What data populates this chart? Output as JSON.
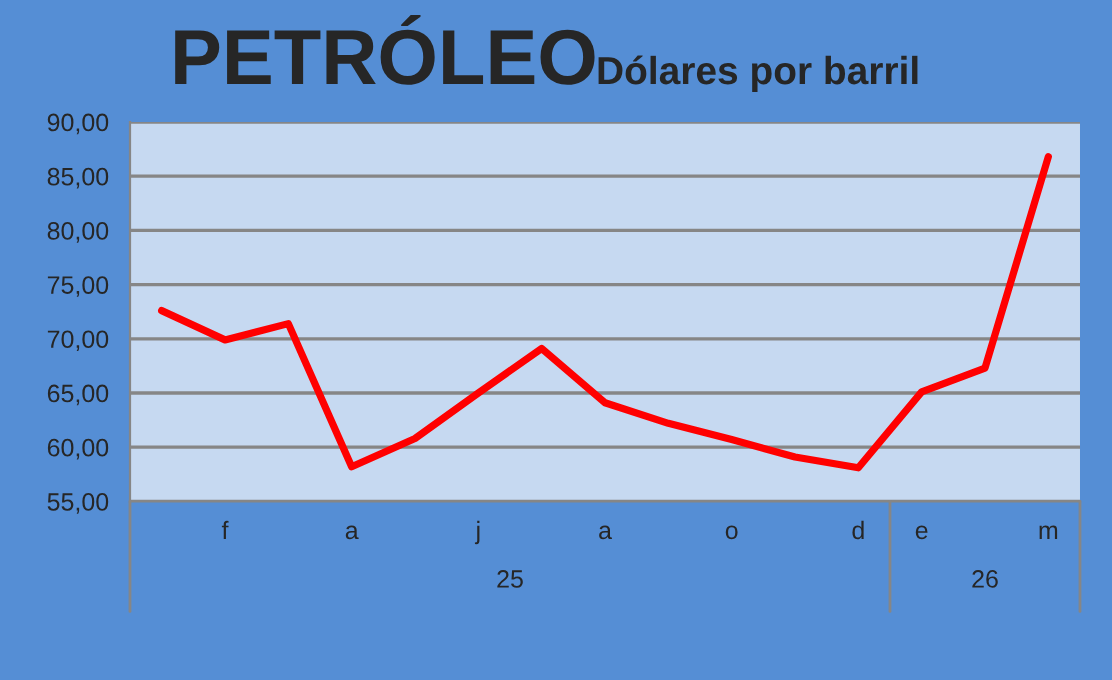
{
  "chart_data": {
    "type": "line",
    "title": "PETRÓLEO",
    "subtitle": "Dólares por barril",
    "categories": [
      null,
      "f",
      null,
      "a",
      null,
      "j",
      null,
      "a",
      null,
      "o",
      null,
      "d",
      "e",
      null,
      "m"
    ],
    "series": [
      {
        "color": "#ff0000",
        "values": [
          72.6,
          69.9,
          71.4,
          58.2,
          60.8,
          65.0,
          69.1,
          64.1,
          62.2,
          60.7,
          59.1,
          58.1,
          65.1,
          67.3,
          86.8
        ]
      }
    ],
    "annotations": [
      "25",
      "26"
    ],
    "ylim": [
      55,
      90
    ],
    "yticks": [
      {
        "value": 55,
        "label": "55,00"
      },
      {
        "value": 60,
        "label": "60,00"
      },
      {
        "value": 65,
        "label": "65,00"
      },
      {
        "value": 70,
        "label": "70,00"
      },
      {
        "value": 75,
        "label": "75,00"
      },
      {
        "value": 80,
        "label": "80,00"
      },
      {
        "value": 85,
        "label": "85,00"
      },
      {
        "value": 90,
        "label": "90,00"
      }
    ],
    "grid": "y",
    "legend": false,
    "marker": "none",
    "line_style": "solid"
  }
}
